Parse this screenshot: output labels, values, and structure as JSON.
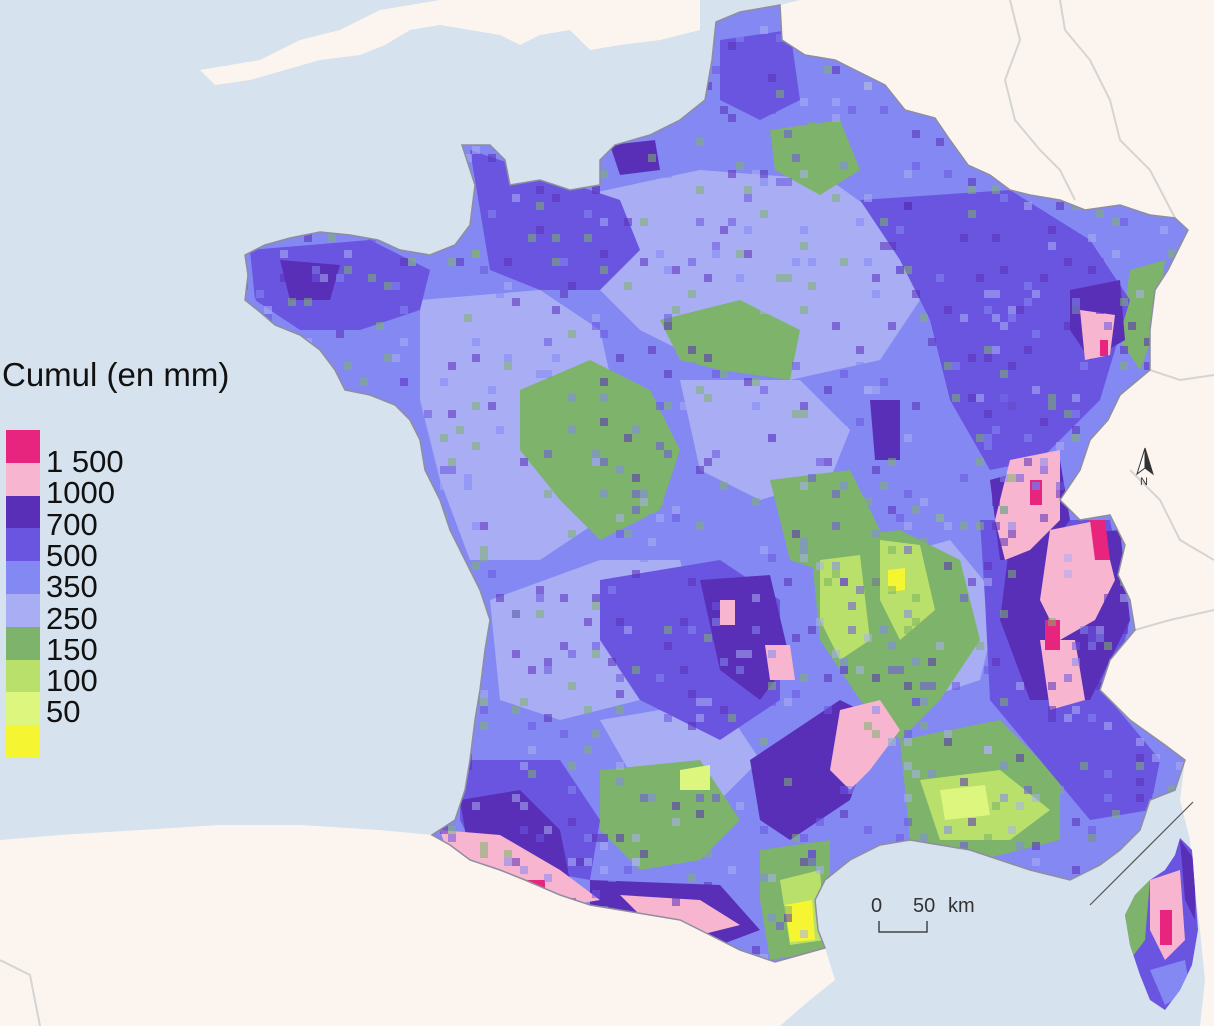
{
  "legend": {
    "title": "Cumul (en mm)",
    "classes": [
      {
        "label": "1 500",
        "color": "#e8257e"
      },
      {
        "label": "1000",
        "color": "#f7b5d0"
      },
      {
        "label": "700",
        "color": "#5a2fb8"
      },
      {
        "label": "500",
        "color": "#6a55e0"
      },
      {
        "label": "350",
        "color": "#8488f2"
      },
      {
        "label": "250",
        "color": "#a9aef4"
      },
      {
        "label": "150",
        "color": "#7db36a"
      },
      {
        "label": "100",
        "color": "#b9e06a"
      },
      {
        "label": "50",
        "color": "#ddf77e"
      },
      {
        "label": "",
        "color": "#f5f531"
      }
    ]
  },
  "scale_bar": {
    "label_start": "0",
    "label_end": "50",
    "unit": "km"
  },
  "north_arrow": {
    "label": "N"
  },
  "colors": {
    "sea": "#d6e2ee",
    "land_outside": "#fcf5ef",
    "borders": "#d4d4d4"
  }
}
